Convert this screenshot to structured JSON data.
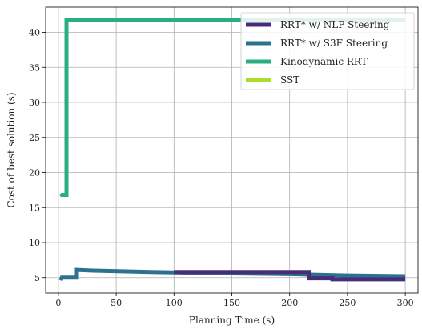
{
  "chart_data": {
    "type": "line",
    "title": "",
    "xlabel": "Planning Time (s)",
    "ylabel": "Cost of best solution (s)",
    "xlim": [
      -11,
      311
    ],
    "ylim": [
      2.8,
      43.6
    ],
    "xticks": [
      0,
      50,
      100,
      150,
      200,
      250,
      300
    ],
    "yticks": [
      5,
      10,
      15,
      20,
      25,
      30,
      35,
      40
    ],
    "grid": true,
    "legend_location": "top-right",
    "series": [
      {
        "name": "SST",
        "color": "#addc30",
        "points": []
      },
      {
        "name": "Kinodynamic RRT",
        "color": "#28ae80",
        "points": [
          [
            2,
            17.0
          ],
          [
            3,
            16.8
          ],
          [
            7,
            16.8
          ],
          [
            7,
            41.8
          ],
          [
            300,
            41.8
          ]
        ]
      },
      {
        "name": "RRT* w/ S3F Steering",
        "color": "#2c728e",
        "points": [
          [
            2,
            4.6
          ],
          [
            3,
            5.0
          ],
          [
            16,
            5.0
          ],
          [
            16,
            6.1
          ],
          [
            30,
            6.0
          ],
          [
            80,
            5.8
          ],
          [
            150,
            5.6
          ],
          [
            200,
            5.5
          ],
          [
            250,
            5.3
          ],
          [
            300,
            5.2
          ]
        ]
      },
      {
        "name": "RRT* w/ NLP Steering",
        "color": "#472c7a",
        "points": [
          [
            100,
            5.8
          ],
          [
            217,
            5.8
          ],
          [
            217,
            4.9
          ],
          [
            237,
            4.9
          ],
          [
            237,
            4.75
          ],
          [
            300,
            4.75
          ]
        ]
      }
    ],
    "legend": [
      {
        "name": "RRT* w/ NLP Steering",
        "color": "#472c7a"
      },
      {
        "name": "RRT* w/ S3F Steering",
        "color": "#2c728e"
      },
      {
        "name": "Kinodynamic RRT",
        "color": "#28ae80"
      },
      {
        "name": "SST",
        "color": "#addc30"
      }
    ]
  }
}
